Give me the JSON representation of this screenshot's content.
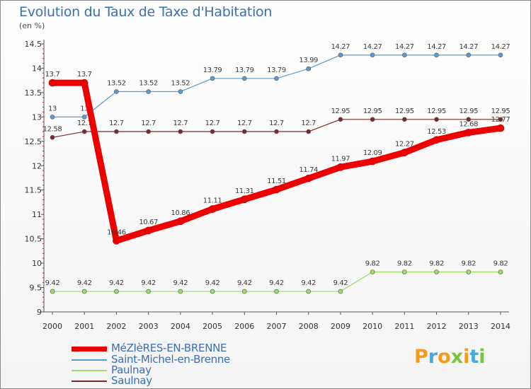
{
  "title": "Evolution du Taux de Taxe d'Habitation",
  "unit": "(en %)",
  "brand": "Proxiti",
  "chart_data": {
    "type": "line",
    "x": [
      "2000",
      "2001",
      "2002",
      "2003",
      "2004",
      "2005",
      "2006",
      "2007",
      "2008",
      "2009",
      "2010",
      "2011",
      "2012",
      "2013",
      "2014"
    ],
    "ylim": [
      9,
      14.5
    ],
    "yticks": [
      "9",
      "9.5",
      "10",
      "10.5",
      "11",
      "11.5",
      "12",
      "12.5",
      "13",
      "13.5",
      "14",
      "14.5"
    ],
    "grid": false,
    "legend_position": "bottom-left",
    "series": [
      {
        "name": "MéZIèRES-EN-BRENNE",
        "color": "#ee0000",
        "values": [
          13.7,
          13.7,
          10.46,
          10.67,
          10.86,
          11.11,
          11.31,
          11.51,
          11.74,
          11.97,
          12.09,
          12.27,
          12.53,
          12.68,
          12.77
        ],
        "labels": [
          "13.7",
          "13.7",
          "10.46",
          "10.67",
          "10.86",
          "11.11",
          "11.31",
          "11.51",
          "11.74",
          "11.97",
          "12.09",
          "12.27",
          "12.53",
          "12.68",
          "12.77"
        ]
      },
      {
        "name": "Saint-Michel-en-Brenne",
        "color": "#5b9bd5",
        "values": [
          13,
          13,
          13.52,
          13.52,
          13.52,
          13.79,
          13.79,
          13.79,
          13.99,
          14.27,
          14.27,
          14.27,
          14.27,
          14.27,
          14.27
        ],
        "labels": [
          "13",
          "13",
          "13.52",
          "13.52",
          "13.52",
          "13.79",
          "13.79",
          "13.79",
          "13.99",
          "14.27",
          "14.27",
          "14.27",
          "14.27",
          "14.27",
          "14.27"
        ]
      },
      {
        "name": "Paulnay",
        "color": "#99dd66",
        "values": [
          9.42,
          9.42,
          9.42,
          9.42,
          9.42,
          9.42,
          9.42,
          9.42,
          9.42,
          9.42,
          9.82,
          9.82,
          9.82,
          9.82,
          9.82
        ],
        "labels": [
          "9.42",
          "9.42",
          "9.42",
          "9.42",
          "9.42",
          "9.42",
          "9.42",
          "9.42",
          "9.42",
          "9.42",
          "9.82",
          "9.82",
          "9.82",
          "9.82",
          "9.82"
        ]
      },
      {
        "name": "Saulnay",
        "color": "#7a2a2a",
        "values": [
          12.58,
          12.7,
          12.7,
          12.7,
          12.7,
          12.7,
          12.7,
          12.7,
          12.7,
          12.95,
          12.95,
          12.95,
          12.95,
          12.95,
          12.95
        ],
        "labels": [
          "12.58",
          "12.7",
          "12.7",
          "12.7",
          "12.7",
          "12.7",
          "12.7",
          "12.7",
          "12.7",
          "12.95",
          "12.95",
          "12.95",
          "12.95",
          "12.95",
          "12.95"
        ]
      }
    ]
  }
}
